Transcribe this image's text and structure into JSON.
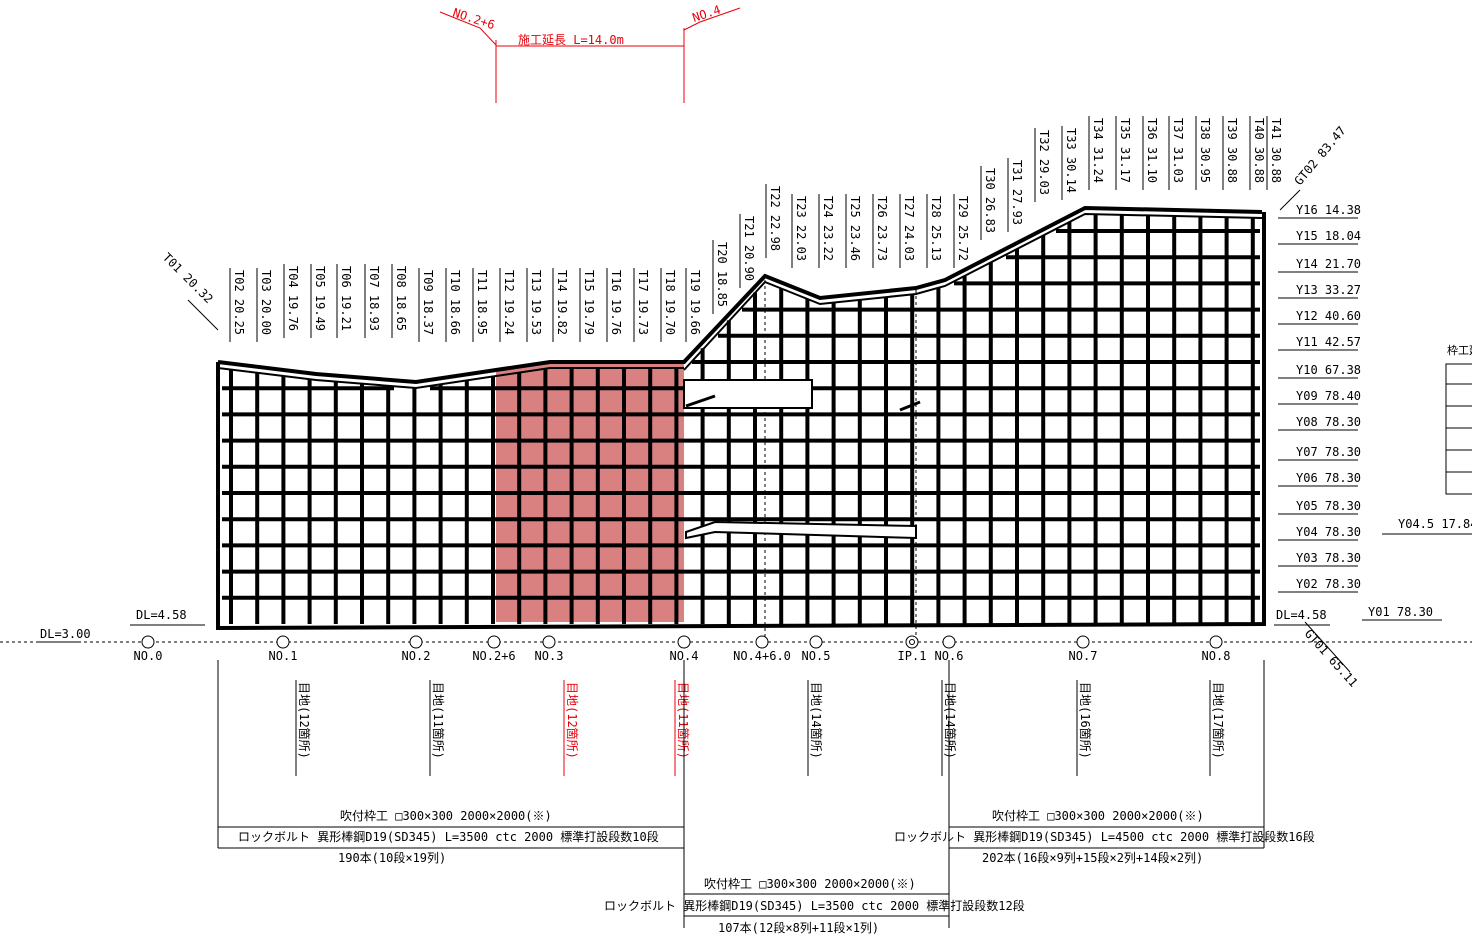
{
  "header": {
    "left_station": "NO.2+6",
    "right_station": "NO.4",
    "construction_length": "施工延長 L=14.0m"
  },
  "top_labels": [
    "T01 20.32",
    "T02 20.25",
    "T03 20.00",
    "T04 19.76",
    "T05 19.49",
    "T06 19.21",
    "T07 18.93",
    "T08 18.65",
    "T09 18.37",
    "T10 18.66",
    "T11 18.95",
    "T12 19.24",
    "T13 19.53",
    "T14 19.82",
    "T15 19.79",
    "T16 19.76",
    "T17 19.73",
    "T18 19.70",
    "T19 19.66",
    "T20 18.85",
    "T21 20.90",
    "T22 22.98",
    "T23 22.03",
    "T24 23.22",
    "T25 23.46",
    "T26 23.73",
    "T27 24.03",
    "T28 25.13",
    "T29 25.72",
    "T30 26.83",
    "T31 27.93",
    "T32 29.03",
    "T33 30.14",
    "T34 31.24",
    "T35 31.17",
    "T36 31.10",
    "T37 31.03",
    "T38 30.95",
    "T39 30.88",
    "T40 30.88",
    "T41 30.88",
    "GT02 83.47"
  ],
  "right_labels": [
    "Y16 14.38",
    "Y15 18.04",
    "Y14 21.70",
    "Y13 33.27",
    "Y12 40.60",
    "Y11 42.57",
    "Y10 67.38",
    "Y09 78.40",
    "Y08 78.30",
    "Y07 78.30",
    "Y06 78.30",
    "Y05 78.30",
    "Y04 78.30",
    "Y03 78.30",
    "Y02 78.30",
    "Y01 78.30"
  ],
  "extra_labels": {
    "y045": "Y04.5 17.84",
    "gt01": "GT01 65.11",
    "dl_left": "DL=4.58",
    "dl_right": "DL=4.58",
    "dl_base": "DL=3.00",
    "frame_table_title": "枠工延"
  },
  "stations": [
    "NO.0",
    "NO.1",
    "NO.2",
    "NO.2+6",
    "NO.3",
    "NO.4",
    "NO.4+6.0",
    "NO.5",
    "IP.1",
    "NO.6",
    "NO.7",
    "NO.8"
  ],
  "joints": [
    {
      "text": "目地(12箇所)",
      "highlight": false
    },
    {
      "text": "目地(11箇所)",
      "highlight": false
    },
    {
      "text": "目地(12箇所)",
      "highlight": true
    },
    {
      "text": "目地(11箇所)",
      "highlight": true
    },
    {
      "text": "目地(14箇所)",
      "highlight": false
    },
    {
      "text": "目地(14箇所)",
      "highlight": false
    },
    {
      "text": "目地(16箇所)",
      "highlight": false
    },
    {
      "text": "目地(17箇所)",
      "highlight": false
    }
  ],
  "notes": {
    "left": {
      "frame": "吹付枠工 □300×300 2000×2000(※)",
      "bolt": "ロックボルト 異形棒鋼D19(SD345) L=3500 ctc 2000 標準打設段数10段",
      "count": "190本(10段×19列)"
    },
    "center": {
      "frame": "吹付枠工 □300×300 2000×2000(※)",
      "bolt": "ロックボルト 異形棒鋼D19(SD345) L=3500 ctc 2000 標準打設段数12段",
      "count": "107本(12段×8列+11段×1列)"
    },
    "right": {
      "frame": "吹付枠工 □300×300 2000×2000(※)",
      "bolt": "ロックボルト 異形棒鋼D19(SD345) L=4500 ctc 2000 標準打設段数16段",
      "count": "202本(16段×9列+15段×2列+14段×2列)"
    }
  },
  "colors": {
    "line": "#000000",
    "highlight_fill": "#d98080",
    "highlight_text": "#e8000b"
  }
}
